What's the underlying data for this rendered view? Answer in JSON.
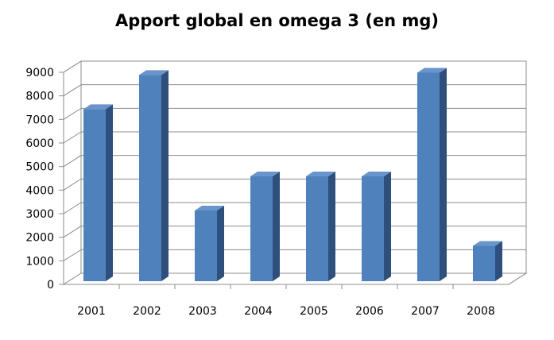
{
  "chart_data": {
    "type": "bar",
    "title": "Apport global en omega 3 (en mg)",
    "xlabel": "",
    "ylabel": "",
    "categories": [
      "2001",
      "2002",
      "2003",
      "2004",
      "2005",
      "2006",
      "2007",
      "2008"
    ],
    "values": [
      7300,
      8750,
      3000,
      4450,
      4450,
      4450,
      8850,
      1500
    ],
    "ylim": [
      0,
      9000
    ],
    "yticks": [
      "0",
      "1000",
      "2000",
      "3000",
      "4000",
      "5000",
      "6000",
      "7000",
      "8000",
      "9000"
    ],
    "grid": true,
    "legend": "none",
    "style": "3d",
    "colors": {
      "bar_front": "#4F81BD",
      "bar_side": "#2F4F7C",
      "bar_top": "#6A95CC",
      "grid": "#8C8C8C",
      "wall": "#FFFFFF"
    }
  }
}
